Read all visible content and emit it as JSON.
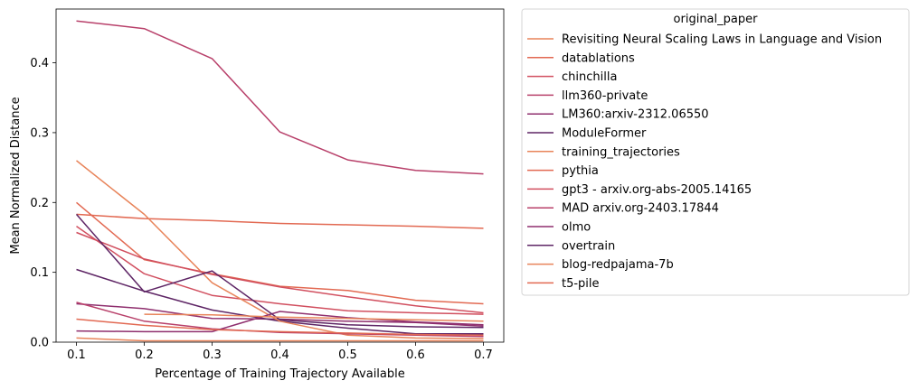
{
  "chart_data": {
    "type": "line",
    "xlabel": "Percentage of Training Trajectory Available",
    "ylabel": "Mean Normalized Distance",
    "xlim": [
      0.07,
      0.73
    ],
    "ylim": [
      0.0,
      0.477
    ],
    "xticks": [
      0.1,
      0.2,
      0.3,
      0.4,
      0.5,
      0.6,
      0.7
    ],
    "xtick_labels": [
      "0.1",
      "0.2",
      "0.3",
      "0.4",
      "0.5",
      "0.6",
      "0.7"
    ],
    "yticks": [
      0.0,
      0.1,
      0.2,
      0.3,
      0.4
    ],
    "ytick_labels": [
      "0.0",
      "0.1",
      "0.2",
      "0.3",
      "0.4"
    ],
    "grid": false,
    "legend": {
      "title": "original_paper",
      "placement": "outside-upper-right"
    },
    "series": [
      {
        "name": "Revisiting Neural Scaling Laws in Language and Vision",
        "color": "#e8845a",
        "x": [
          0.1,
          0.2,
          0.3,
          0.4,
          0.5,
          0.6,
          0.7
        ],
        "y": [
          0.006,
          0.002,
          0.002,
          0.002,
          0.002,
          0.002,
          0.002
        ]
      },
      {
        "name": "datablations",
        "color": "#e26952",
        "x": [
          0.1,
          0.2,
          0.3,
          0.4,
          0.5,
          0.6,
          0.7
        ],
        "y": [
          0.183,
          0.177,
          0.174,
          0.17,
          0.168,
          0.166,
          0.163
        ]
      },
      {
        "name": "chinchilla",
        "color": "#d14f5f",
        "x": [
          0.1,
          0.2,
          0.3,
          0.4,
          0.5,
          0.6,
          0.7
        ],
        "y": [
          0.166,
          0.098,
          0.067,
          0.055,
          0.045,
          0.042,
          0.04
        ]
      },
      {
        "name": "llm360-private",
        "color": "#b8406a",
        "x": [
          0.1,
          0.2,
          0.3,
          0.4,
          0.5,
          0.6,
          0.7
        ],
        "y": [
          0.46,
          0.449,
          0.406,
          0.301,
          0.261,
          0.246,
          0.241
        ]
      },
      {
        "name": "LM360:arxiv-2312.06550",
        "color": "#8f2f6e",
        "x": [
          0.1,
          0.2,
          0.3,
          0.4,
          0.5,
          0.6,
          0.7
        ],
        "y": [
          0.055,
          0.048,
          0.034,
          0.033,
          0.03,
          0.028,
          0.023
        ]
      },
      {
        "name": "ModuleFormer",
        "color": "#5e2565",
        "x": [
          0.1,
          0.2,
          0.3,
          0.4,
          0.5,
          0.6,
          0.7
        ],
        "y": [
          0.104,
          0.073,
          0.046,
          0.03,
          0.02,
          0.012,
          0.012
        ]
      },
      {
        "name": "training_trajectories",
        "color": "#e8845a",
        "x": [
          0.1,
          0.2,
          0.3,
          0.4,
          0.5,
          0.6,
          0.7
        ],
        "y": [
          0.26,
          0.183,
          0.085,
          0.03,
          0.01,
          0.006,
          0.005
        ]
      },
      {
        "name": "pythia",
        "color": "#e26952",
        "x": [
          0.1,
          0.2,
          0.3,
          0.4,
          0.5,
          0.6,
          0.7
        ],
        "y": [
          0.2,
          0.118,
          0.098,
          0.08,
          0.074,
          0.06,
          0.055
        ]
      },
      {
        "name": "gpt3 - arxiv.org-abs-2005.14165",
        "color": "#d14f5f",
        "x": [
          0.1,
          0.2,
          0.3,
          0.4,
          0.5,
          0.6,
          0.7
        ],
        "y": [
          0.157,
          0.119,
          0.097,
          0.079,
          0.065,
          0.052,
          0.042
        ]
      },
      {
        "name": "MAD arxiv.org-2403.17844",
        "color": "#b8406a",
        "x": [
          0.1,
          0.2,
          0.3,
          0.4,
          0.5,
          0.6,
          0.7
        ],
        "y": [
          0.057,
          0.03,
          0.019,
          0.014,
          0.012,
          0.01,
          0.008
        ]
      },
      {
        "name": "olmo",
        "color": "#8f2f6e",
        "x": [
          0.1,
          0.2,
          0.3,
          0.4,
          0.5,
          0.6,
          0.7
        ],
        "y": [
          0.016,
          0.015,
          0.015,
          0.044,
          0.035,
          0.029,
          0.025
        ]
      },
      {
        "name": "overtrain",
        "color": "#5e2565",
        "x": [
          0.1,
          0.2,
          0.3,
          0.4,
          0.5,
          0.6,
          0.7
        ],
        "y": [
          0.183,
          0.072,
          0.102,
          0.032,
          0.025,
          0.022,
          0.021
        ]
      },
      {
        "name": "blog-redpajama-7b",
        "color": "#e8845a",
        "x": [
          0.2,
          0.3,
          0.4,
          0.5,
          0.6,
          0.7
        ],
        "y": [
          0.04,
          0.039,
          0.036,
          0.034,
          0.032,
          0.03
        ]
      },
      {
        "name": "t5-pile",
        "color": "#e26952",
        "x": [
          0.1,
          0.2,
          0.3,
          0.4,
          0.5,
          0.6,
          0.7
        ],
        "y": [
          0.033,
          0.024,
          0.018,
          0.015,
          0.013,
          0.011,
          0.01
        ]
      }
    ]
  }
}
